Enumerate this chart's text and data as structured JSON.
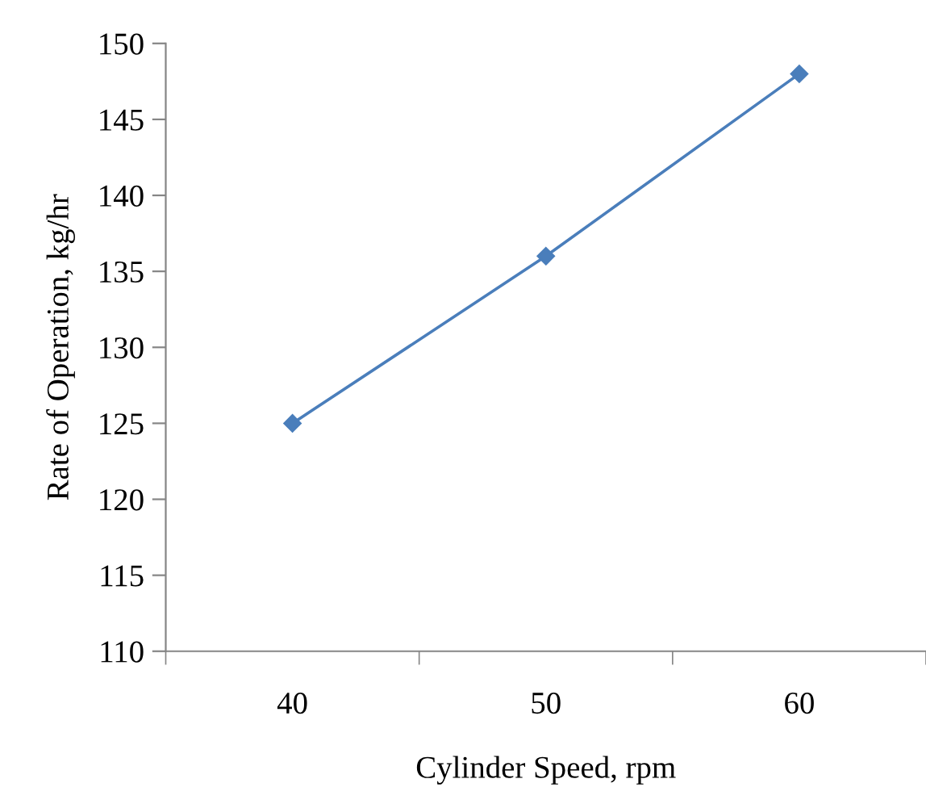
{
  "chart_data": {
    "type": "line",
    "xlabel": "Cylinder Speed, rpm",
    "ylabel": "Rate of Operation, kg/hr",
    "categories": [
      "40",
      "50",
      "60"
    ],
    "series": [
      {
        "color": "#4a7ebb",
        "values": [
          125,
          136,
          148
        ]
      }
    ],
    "ylim": [
      110,
      150
    ],
    "yticks": [
      110,
      115,
      120,
      125,
      130,
      135,
      140,
      145,
      150
    ],
    "grid": false,
    "legend": false,
    "marker": "diamond",
    "line_style": "solid"
  }
}
